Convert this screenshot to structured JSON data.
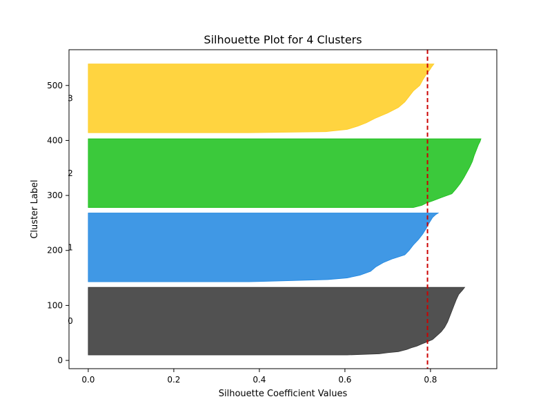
{
  "chart_data": {
    "type": "area",
    "title": "Silhouette Plot for 4 Clusters",
    "xlabel": "Silhouette Coefficient Values",
    "ylabel": "Cluster Label",
    "xlim": [
      -0.045,
      0.955
    ],
    "ylim": [
      -15,
      565
    ],
    "xticks": [
      0.0,
      0.2,
      0.4,
      0.6,
      0.8
    ],
    "xtick_labels": [
      "0.0",
      "0.2",
      "0.4",
      "0.6",
      "0.8"
    ],
    "yticks": [
      0,
      100,
      200,
      300,
      400,
      500
    ],
    "ytick_labels": [
      "0",
      "100",
      "200",
      "300",
      "400",
      "500"
    ],
    "grid": false,
    "average_silhouette": 0.793,
    "average_line_color": "#cc0000",
    "series": [
      {
        "label": "0",
        "color": "#333333",
        "y_lower": 10,
        "y_upper": 133,
        "values_profile": [
          [
            10,
            0.605
          ],
          [
            12,
            0.68
          ],
          [
            14,
            0.7
          ],
          [
            16,
            0.725
          ],
          [
            18,
            0.735
          ],
          [
            20,
            0.745
          ],
          [
            23,
            0.755
          ],
          [
            26,
            0.768
          ],
          [
            30,
            0.78
          ],
          [
            34,
            0.793
          ],
          [
            38,
            0.805
          ],
          [
            45,
            0.815
          ],
          [
            52,
            0.825
          ],
          [
            60,
            0.833
          ],
          [
            70,
            0.84
          ],
          [
            80,
            0.845
          ],
          [
            90,
            0.85
          ],
          [
            100,
            0.855
          ],
          [
            110,
            0.86
          ],
          [
            120,
            0.866
          ],
          [
            128,
            0.875
          ],
          [
            133,
            0.88
          ]
        ]
      },
      {
        "label": "1",
        "color": "#1f86e0",
        "y_lower": 143,
        "y_upper": 268,
        "values_profile": [
          [
            143,
            0.375
          ],
          [
            147,
            0.56
          ],
          [
            150,
            0.605
          ],
          [
            155,
            0.635
          ],
          [
            162,
            0.66
          ],
          [
            170,
            0.672
          ],
          [
            178,
            0.69
          ],
          [
            185,
            0.712
          ],
          [
            192,
            0.74
          ],
          [
            200,
            0.75
          ],
          [
            210,
            0.76
          ],
          [
            220,
            0.772
          ],
          [
            230,
            0.782
          ],
          [
            240,
            0.79
          ],
          [
            250,
            0.797
          ],
          [
            260,
            0.805
          ],
          [
            265,
            0.812
          ],
          [
            268,
            0.818
          ]
        ]
      },
      {
        "label": "2",
        "color": "#19c019",
        "y_lower": 278,
        "y_upper": 403,
        "values_profile": [
          [
            278,
            0.76
          ],
          [
            282,
            0.78
          ],
          [
            286,
            0.79
          ],
          [
            290,
            0.805
          ],
          [
            296,
            0.825
          ],
          [
            303,
            0.85
          ],
          [
            312,
            0.86
          ],
          [
            322,
            0.87
          ],
          [
            332,
            0.878
          ],
          [
            342,
            0.885
          ],
          [
            352,
            0.892
          ],
          [
            362,
            0.898
          ],
          [
            372,
            0.902
          ],
          [
            382,
            0.907
          ],
          [
            392,
            0.912
          ],
          [
            398,
            0.916
          ],
          [
            403,
            0.918
          ]
        ]
      },
      {
        "label": "3",
        "color": "#ffcc1f",
        "y_lower": 414,
        "y_upper": 539,
        "values_profile": [
          [
            414,
            0.375
          ],
          [
            416,
            0.555
          ],
          [
            420,
            0.605
          ],
          [
            426,
            0.63
          ],
          [
            432,
            0.65
          ],
          [
            440,
            0.67
          ],
          [
            450,
            0.7
          ],
          [
            460,
            0.725
          ],
          [
            470,
            0.74
          ],
          [
            480,
            0.75
          ],
          [
            490,
            0.76
          ],
          [
            500,
            0.775
          ],
          [
            510,
            0.782
          ],
          [
            520,
            0.79
          ],
          [
            528,
            0.798
          ],
          [
            534,
            0.803
          ],
          [
            539,
            0.808
          ]
        ]
      }
    ]
  }
}
